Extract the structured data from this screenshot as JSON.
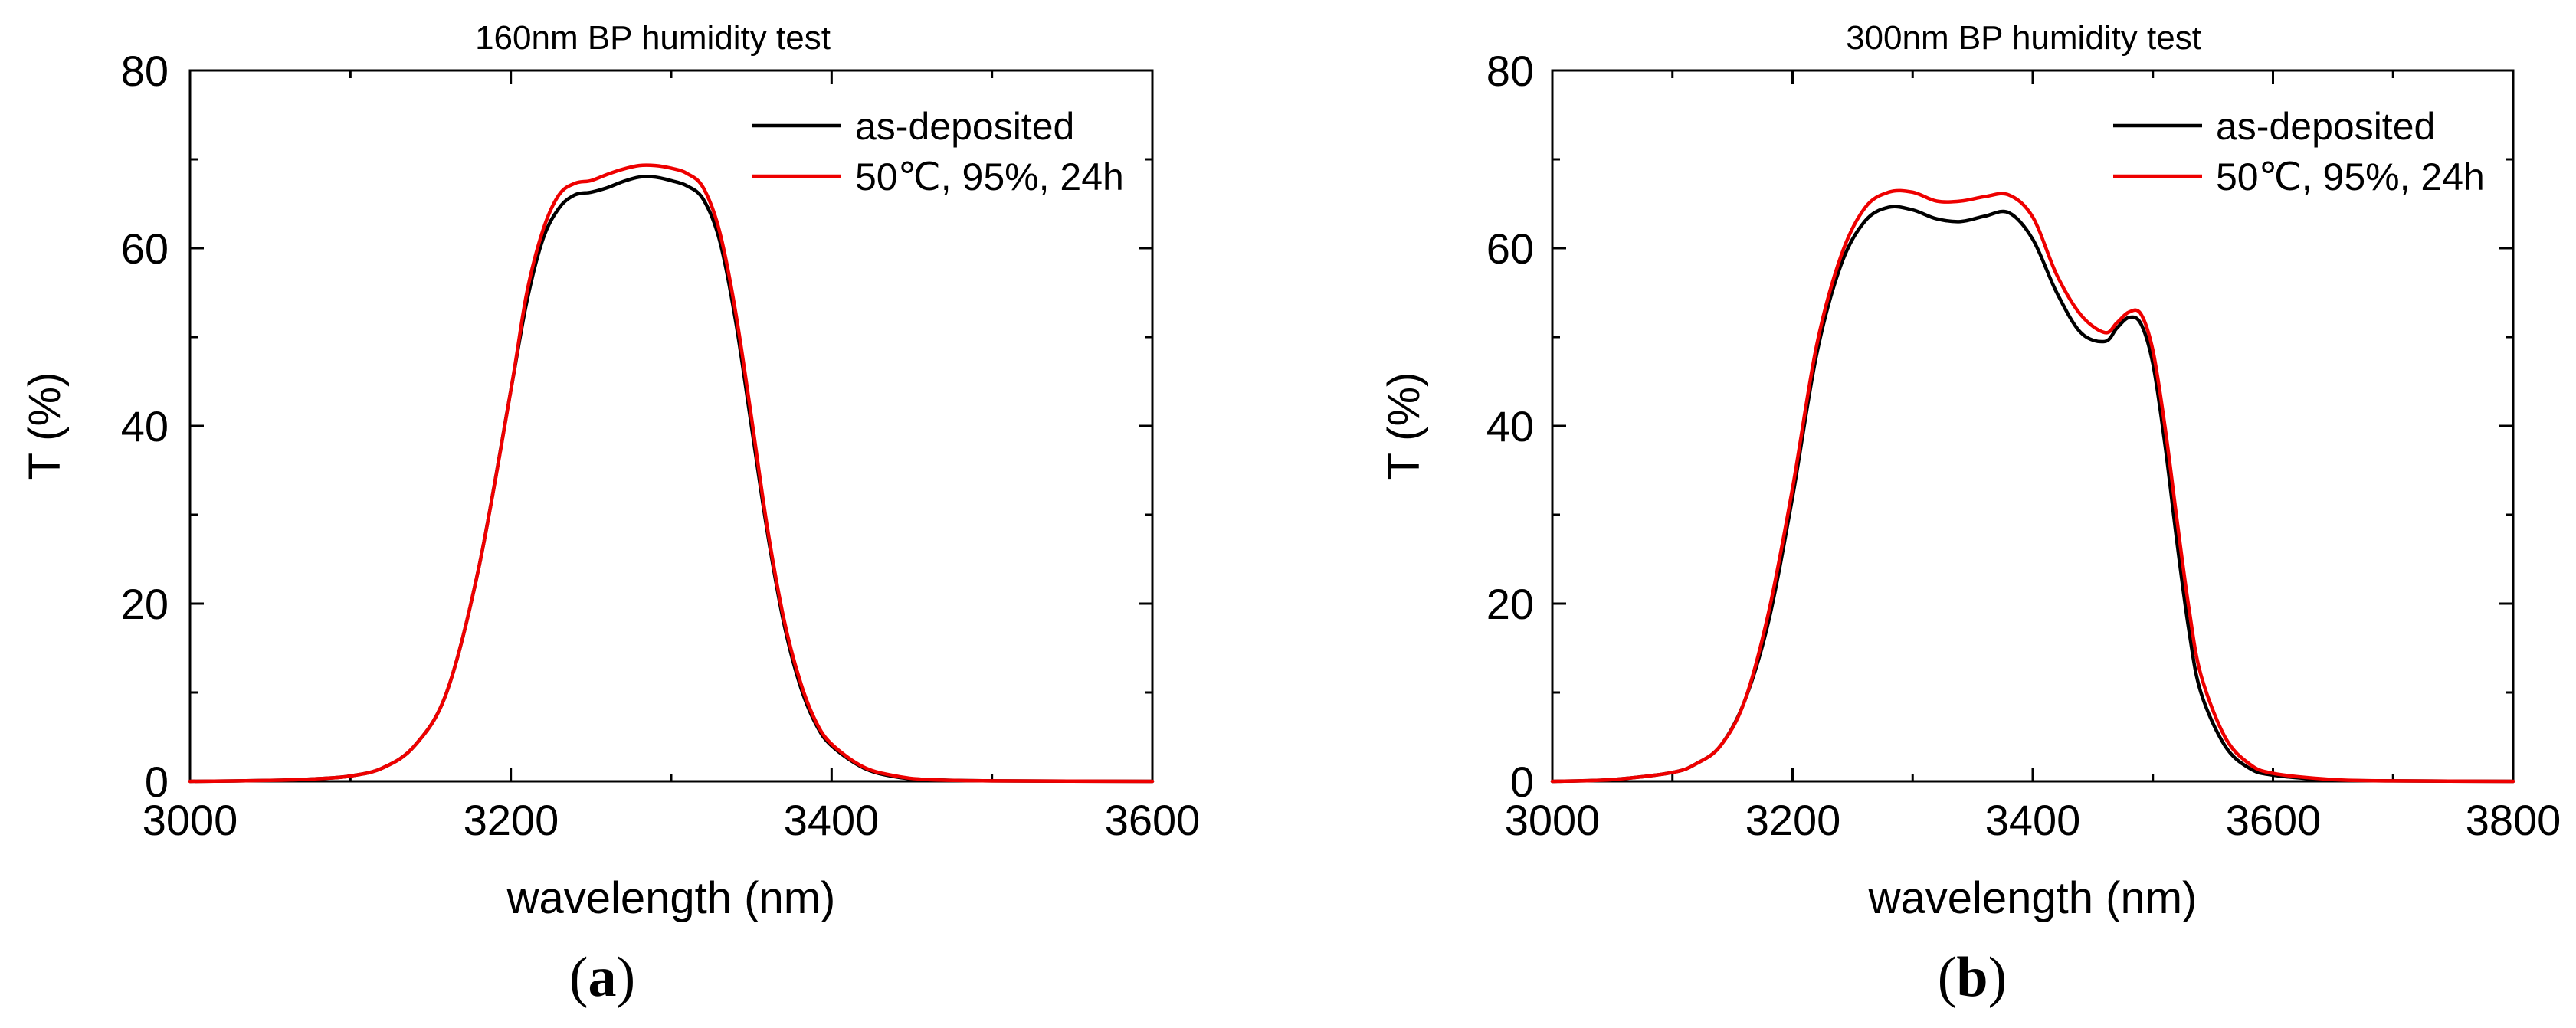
{
  "chart_data": [
    {
      "type": "line",
      "title": "160nm BP humidity test",
      "xlabel": "wavelength (nm)",
      "ylabel": "T (%)",
      "xlim": [
        3000,
        3600
      ],
      "ylim": [
        0,
        80
      ],
      "xticks": [
        3000,
        3200,
        3400,
        3600
      ],
      "yticks": [
        0,
        20,
        40,
        60,
        80
      ],
      "xticks_minor": [
        3100,
        3300,
        3500
      ],
      "yticks_minor": [
        10,
        30,
        50,
        70
      ],
      "xtick_labels": [
        "3000",
        "3200",
        "3400",
        "3600"
      ],
      "ytick_labels": [
        "0",
        "20",
        "40",
        "60",
        "80"
      ],
      "legend_position": "top-right",
      "panel_label": {
        "open": "(",
        "letter": "a",
        "close": ")"
      },
      "series": [
        {
          "name": "as-deposited",
          "color": "#000000",
          "x": [
            3000,
            3050,
            3080,
            3100,
            3120,
            3140,
            3160,
            3180,
            3200,
            3210,
            3220,
            3230,
            3240,
            3250,
            3260,
            3270,
            3280,
            3290,
            3300,
            3310,
            3320,
            3330,
            3340,
            3350,
            3360,
            3370,
            3380,
            3390,
            3400,
            3420,
            3440,
            3460,
            3500,
            3600
          ],
          "y": [
            0,
            0.1,
            0.3,
            0.6,
            1.5,
            4,
            10,
            24,
            44,
            54,
            61,
            64.5,
            66,
            66.3,
            66.8,
            67.5,
            68,
            68,
            67.6,
            67,
            65.5,
            61,
            52,
            40,
            28,
            18,
            11,
            6.5,
            4,
            1.5,
            0.5,
            0.2,
            0.05,
            0
          ]
        },
        {
          "name": "50℃, 95%, 24h",
          "color": "#ee0000",
          "x": [
            3000,
            3050,
            3080,
            3100,
            3120,
            3140,
            3160,
            3180,
            3200,
            3210,
            3220,
            3230,
            3240,
            3250,
            3260,
            3270,
            3280,
            3290,
            3300,
            3310,
            3320,
            3330,
            3340,
            3350,
            3360,
            3370,
            3380,
            3390,
            3400,
            3420,
            3440,
            3460,
            3500,
            3600
          ],
          "y": [
            0,
            0.1,
            0.3,
            0.6,
            1.5,
            4,
            10,
            24,
            44,
            55,
            62,
            66,
            67.3,
            67.6,
            68.3,
            68.9,
            69.3,
            69.3,
            69,
            68.4,
            66.8,
            62,
            53,
            41,
            28.5,
            18.5,
            11.5,
            6.8,
            4.2,
            1.6,
            0.6,
            0.2,
            0.05,
            0
          ]
        }
      ]
    },
    {
      "type": "line",
      "title": "300nm BP humidity test",
      "xlabel": "wavelength (nm)",
      "ylabel": "T (%)",
      "xlim": [
        3000,
        3800
      ],
      "ylim": [
        0,
        80
      ],
      "xticks": [
        3000,
        3200,
        3400,
        3600,
        3800
      ],
      "yticks": [
        0,
        20,
        40,
        60,
        80
      ],
      "xticks_minor": [
        3100,
        3300,
        3500,
        3700
      ],
      "yticks_minor": [
        10,
        30,
        50,
        70
      ],
      "xtick_labels": [
        "3000",
        "3200",
        "3400",
        "3600",
        "3800"
      ],
      "ytick_labels": [
        "0",
        "20",
        "40",
        "60",
        "80"
      ],
      "legend_position": "top-right",
      "panel_label": {
        "open": "(",
        "letter": "b",
        "close": ")"
      },
      "series": [
        {
          "name": "as-deposited",
          "color": "#000000",
          "x": [
            3000,
            3050,
            3100,
            3120,
            3140,
            3160,
            3180,
            3200,
            3220,
            3240,
            3260,
            3280,
            3300,
            3320,
            3340,
            3360,
            3380,
            3400,
            3420,
            3440,
            3460,
            3470,
            3480,
            3490,
            3500,
            3510,
            3520,
            3530,
            3540,
            3560,
            3580,
            3600,
            3650,
            3700,
            3800
          ],
          "y": [
            0,
            0.2,
            1,
            2,
            4,
            9,
            18,
            32,
            48,
            58,
            63,
            64.6,
            64.3,
            63.3,
            63,
            63.6,
            64,
            61,
            55,
            50.5,
            49.5,
            51,
            52.2,
            51.5,
            47,
            38,
            27,
            17,
            10,
            4,
            1.5,
            0.7,
            0.15,
            0.05,
            0
          ]
        },
        {
          "name": "50℃, 95%, 24h",
          "color": "#ee0000",
          "x": [
            3000,
            3050,
            3100,
            3120,
            3140,
            3160,
            3180,
            3200,
            3220,
            3240,
            3260,
            3280,
            3300,
            3320,
            3340,
            3360,
            3380,
            3400,
            3420,
            3440,
            3460,
            3470,
            3480,
            3490,
            3500,
            3510,
            3520,
            3530,
            3540,
            3560,
            3580,
            3600,
            3650,
            3700,
            3800
          ],
          "y": [
            0,
            0.2,
            1,
            2,
            4,
            9,
            19,
            33,
            49,
            59,
            64.5,
            66.3,
            66.3,
            65.3,
            65.3,
            65.8,
            66,
            63.5,
            57,
            52.5,
            50.5,
            51.6,
            52.8,
            52.6,
            48.5,
            40,
            29.5,
            19.5,
            12,
            5,
            2,
            0.9,
            0.2,
            0.05,
            0
          ]
        }
      ]
    }
  ]
}
